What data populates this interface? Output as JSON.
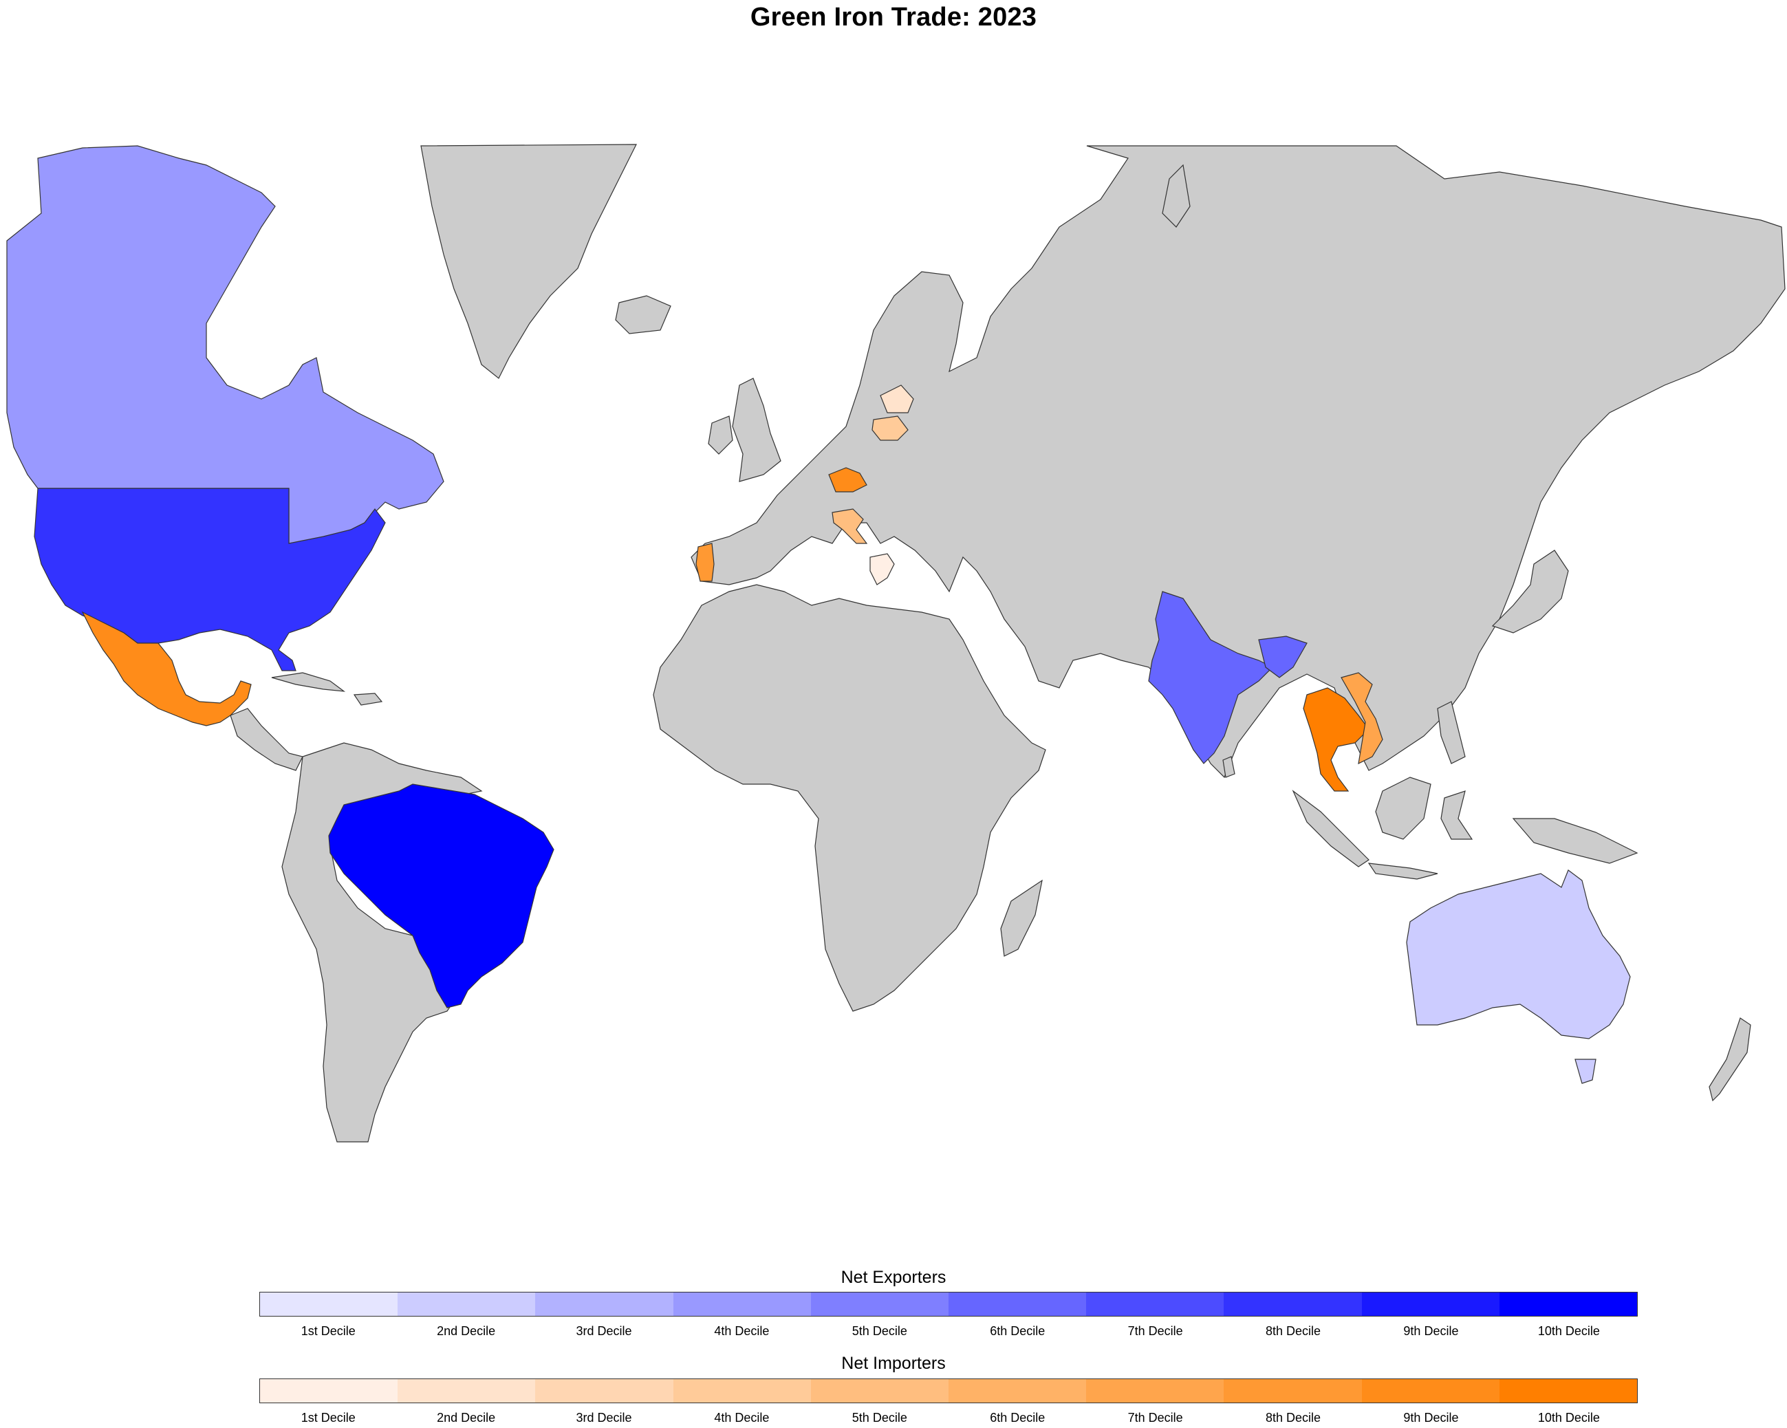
{
  "title": "Green Iron Trade: 2023",
  "colors": {
    "land": "#cccccc",
    "border": "#333333",
    "ocean": "#ffffff"
  },
  "legend": {
    "exporters": {
      "title": "Net Exporters",
      "colors": [
        "#e5e5ff",
        "#ccccff",
        "#b2b2ff",
        "#9999ff",
        "#7f7fff",
        "#6666ff",
        "#4c4cff",
        "#3333ff",
        "#1919ff",
        "#0000ff"
      ]
    },
    "importers": {
      "title": "Net Importers",
      "colors": [
        "#ffefe5",
        "#ffe3cc",
        "#ffd6b2",
        "#ffcb99",
        "#ffbe7f",
        "#ffb266",
        "#ffa54c",
        "#ff9933",
        "#ff8c19",
        "#ff7f00"
      ]
    },
    "labels": [
      "1st Decile",
      "2nd Decile",
      "3rd Decile",
      "4th Decile",
      "5th Decile",
      "6th Decile",
      "7th Decile",
      "8th Decile",
      "9th Decile",
      "10th Decile"
    ]
  },
  "map_data": {
    "highlighted": [
      {
        "region": "canada",
        "group": "exporters",
        "decile": 4
      },
      {
        "region": "usa",
        "group": "exporters",
        "decile": 8
      },
      {
        "region": "brazil",
        "group": "exporters",
        "decile": 10
      },
      {
        "region": "india",
        "group": "exporters",
        "decile": 6
      },
      {
        "region": "bangladesh",
        "group": "exporters",
        "decile": 6
      },
      {
        "region": "australia",
        "group": "exporters",
        "decile": 2
      },
      {
        "region": "mexico",
        "group": "importers",
        "decile": 9
      },
      {
        "region": "thailand",
        "group": "importers",
        "decile": 10
      },
      {
        "region": "vietnam",
        "group": "importers",
        "decile": 7
      },
      {
        "region": "czechia",
        "group": "importers",
        "decile": 9
      },
      {
        "region": "portugal",
        "group": "importers",
        "decile": 8
      },
      {
        "region": "lithuania",
        "group": "importers",
        "decile": 4
      },
      {
        "region": "latvia",
        "group": "importers",
        "decile": 2
      },
      {
        "region": "croatia",
        "group": "importers",
        "decile": 5
      },
      {
        "region": "greece",
        "group": "importers",
        "decile": 1
      }
    ]
  }
}
